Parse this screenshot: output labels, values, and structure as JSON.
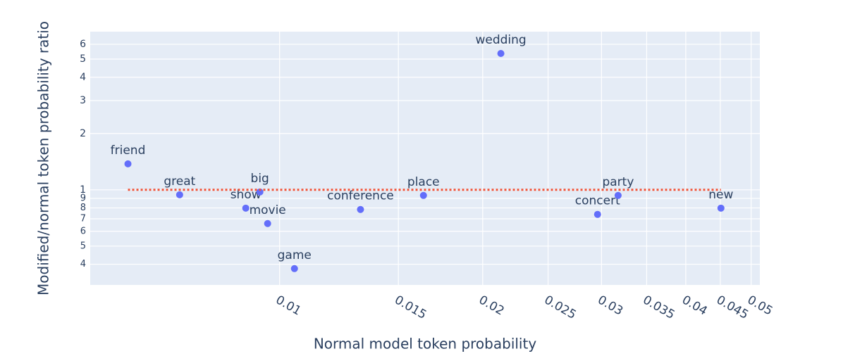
{
  "chart_data": {
    "type": "scatter",
    "xlabel": "Normal model token probability",
    "ylabel": "Modified/normal token probability ratio",
    "xscale": "log",
    "yscale": "log",
    "grid": true,
    "xlim": [
      0.00524,
      0.0515
    ],
    "ylim": [
      0.31,
      7.01
    ],
    "xticks": [
      0.01,
      0.015,
      0.02,
      0.025,
      0.03,
      0.035,
      0.04,
      0.045,
      0.05
    ],
    "yticks": [
      {
        "value": 0.4,
        "label": "4"
      },
      {
        "value": 0.5,
        "label": "5"
      },
      {
        "value": 0.6,
        "label": "6"
      },
      {
        "value": 0.7,
        "label": "7"
      },
      {
        "value": 0.8,
        "label": "8"
      },
      {
        "value": 0.9,
        "label": "9"
      },
      1,
      2,
      3,
      4,
      5,
      6
    ],
    "series": [
      {
        "mode": "markers+text",
        "color": "#636efa",
        "text": [
          "friend",
          "great",
          "show",
          "big",
          "movie",
          "game",
          "conference",
          "place",
          "wedding",
          "concert",
          "party",
          "new"
        ],
        "x": [
          0.00596,
          0.00711,
          0.00891,
          0.00935,
          0.0096,
          0.01052,
          0.01318,
          0.01634,
          0.02128,
          0.0296,
          0.03175,
          0.0451
        ],
        "y": [
          1.377,
          0.941,
          0.798,
          0.974,
          0.66,
          0.379,
          0.785,
          0.933,
          5.36,
          0.739,
          0.933,
          0.798
        ]
      },
      {
        "mode": "lines",
        "dash": "dot",
        "color": "#ef553b",
        "x": [
          0.00596,
          0.0451
        ],
        "y": [
          1,
          1
        ]
      }
    ]
  }
}
